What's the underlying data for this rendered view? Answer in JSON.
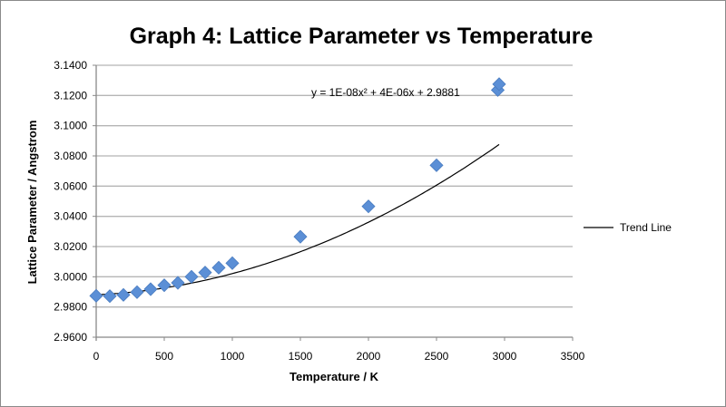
{
  "chart_data": {
    "type": "scatter",
    "title": "Graph 4: Lattice Parameter vs Temperature",
    "xlabel": "Temperature / K",
    "ylabel": "Lattice Parameter /  Angstrom",
    "xlim": [
      0,
      3500
    ],
    "ylim": [
      2.96,
      3.14
    ],
    "xticks": [
      "0",
      "500",
      "1000",
      "1500",
      "2000",
      "2500",
      "3000",
      "3500"
    ],
    "yticks": [
      "2.9600",
      "2.9800",
      "3.0000",
      "3.0200",
      "3.0400",
      "3.0600",
      "3.0800",
      "3.1000",
      "3.1200",
      "3.1400"
    ],
    "grid": "horizontal",
    "legend_position": "right",
    "marker_color": "#5b8fd6",
    "trend_color": "#000000",
    "series": [
      {
        "x": [
          0,
          100,
          200,
          300,
          400,
          500,
          600,
          700,
          800,
          900,
          1000,
          1500,
          2000,
          2500,
          2950,
          2960
        ],
        "y": [
          2.9874,
          2.9872,
          2.988,
          2.9898,
          2.9918,
          2.9944,
          2.996,
          3.0,
          3.0028,
          3.006,
          3.009,
          3.0265,
          3.0466,
          3.0738,
          3.1236,
          3.1275
        ]
      }
    ],
    "trendline": {
      "name": "Trend Line",
      "equation": "y = 1E-08x² + 4E-06x + 2.9881",
      "coefficients": [
        1e-08,
        4e-06,
        2.9881
      ]
    }
  }
}
